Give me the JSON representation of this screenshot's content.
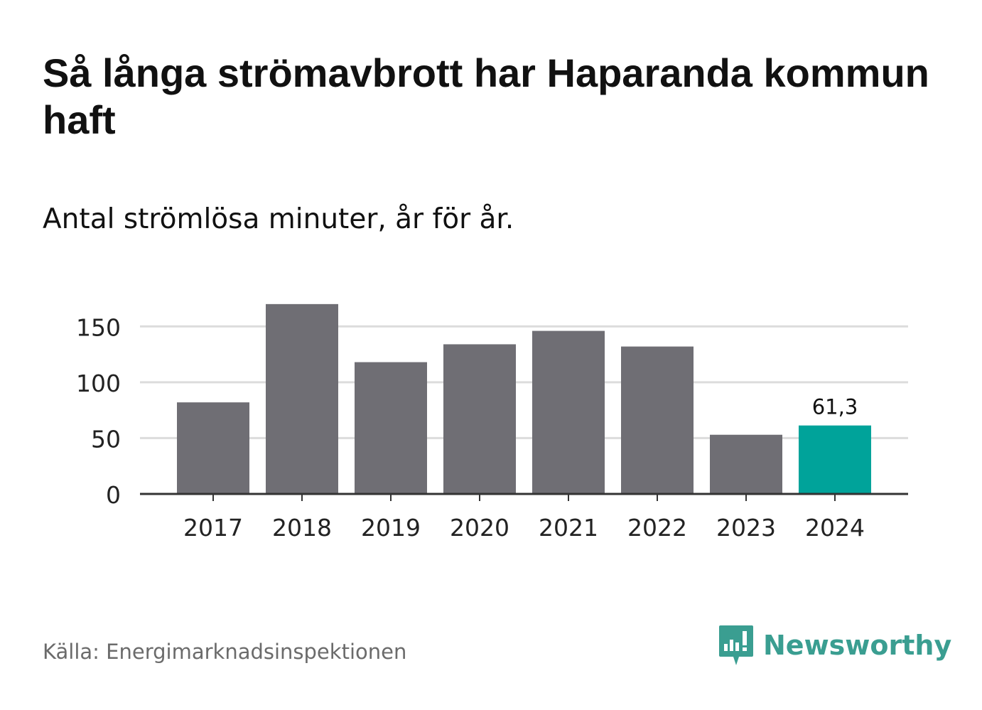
{
  "title": "Så långa strömavbrott har Haparanda kommun haft",
  "subtitle": "Antal strömlösa minuter, år för år.",
  "source": "Källa: Energimarknadsinspektionen",
  "brand": {
    "name": "Newsworthy",
    "icon": "newsworthy-logo-icon",
    "color": "#3a9e91"
  },
  "colors": {
    "bar": "#6f6e74",
    "highlight": "#00a39a",
    "grid": "#dcdcdc",
    "axis": "#333333"
  },
  "chart_data": {
    "type": "bar",
    "categories": [
      "2017",
      "2018",
      "2019",
      "2020",
      "2021",
      "2022",
      "2023",
      "2024"
    ],
    "values": [
      82,
      170,
      118,
      134,
      146,
      132,
      53,
      61.3
    ],
    "highlight_index": 7,
    "data_labels": [
      {
        "index": 7,
        "text": "61,3"
      }
    ],
    "yticks": [
      "0",
      "50",
      "100",
      "150"
    ],
    "ytick_values": [
      0,
      50,
      100,
      150
    ],
    "ylim": [
      0,
      175
    ],
    "grid": true,
    "title": "Så långa strömavbrott har Haparanda kommun haft",
    "subtitle": "Antal strömlösa minuter, år för år.",
    "xlabel": "",
    "ylabel": ""
  }
}
